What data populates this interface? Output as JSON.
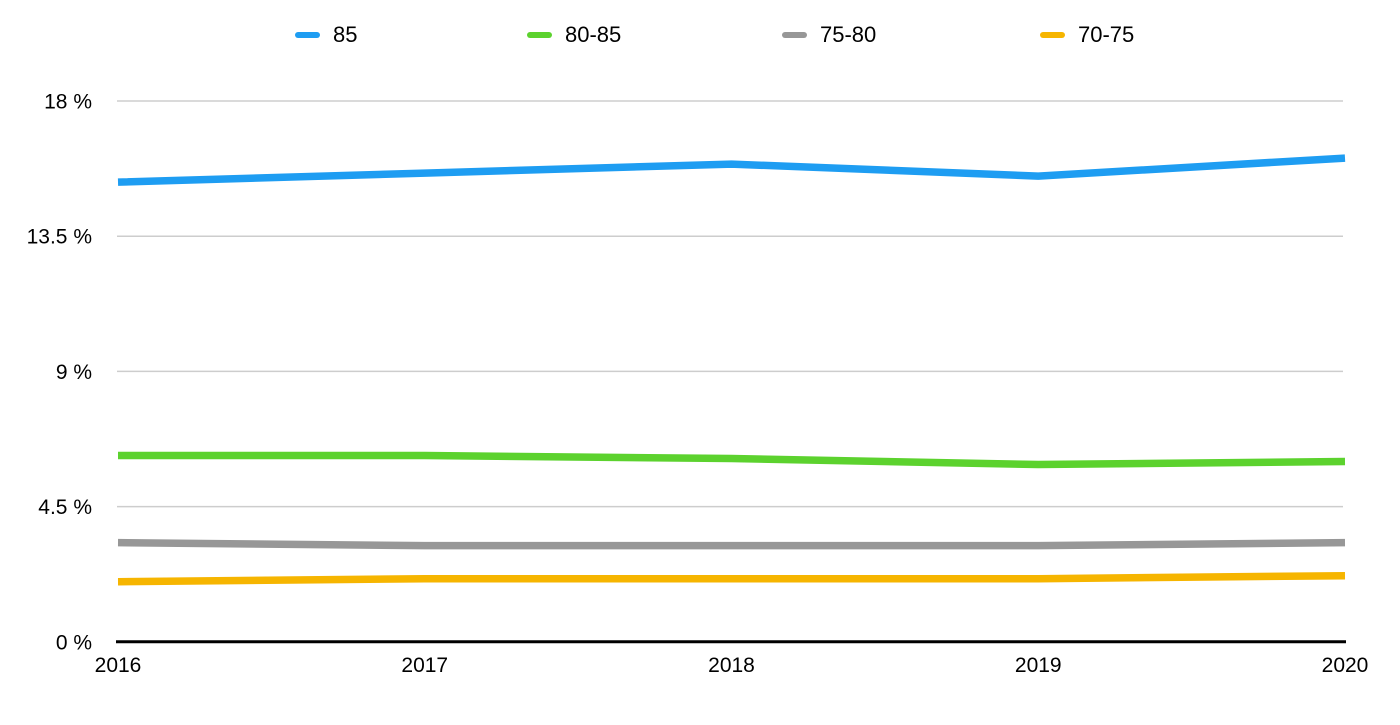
{
  "background_color": "#ffffff",
  "chart_data": {
    "type": "line",
    "title": "",
    "x": [
      2016,
      2017,
      2018,
      2019,
      2020
    ],
    "xtick_labels": [
      "2016",
      "2017",
      "2018",
      "2019",
      "2020"
    ],
    "yticks": [
      {
        "value": 0,
        "label": "0 %"
      },
      {
        "value": 4.5,
        "label": "4.5 %"
      },
      {
        "value": 9,
        "label": "9 %"
      },
      {
        "value": 13.5,
        "label": "13.5 %"
      },
      {
        "value": 18,
        "label": "18 %"
      }
    ],
    "ylim": [
      0,
      18
    ],
    "grid": true,
    "legend_position": "top",
    "series": [
      {
        "name": "85",
        "color": "#1e9df2",
        "values": [
          15.3,
          15.6,
          15.9,
          15.5,
          16.1
        ]
      },
      {
        "name": "80-85",
        "color": "#5cd22e",
        "values": [
          6.2,
          6.2,
          6.1,
          5.9,
          6.0
        ]
      },
      {
        "name": "75-80",
        "color": "#979797",
        "values": [
          3.3,
          3.2,
          3.2,
          3.2,
          3.3
        ]
      },
      {
        "name": "70-75",
        "color": "#f6b500",
        "values": [
          2.0,
          2.1,
          2.1,
          2.1,
          2.2
        ]
      }
    ],
    "colors": {
      "gridline": "#cdcdcd",
      "axis": "#000000",
      "tick_text": "#000000"
    }
  }
}
